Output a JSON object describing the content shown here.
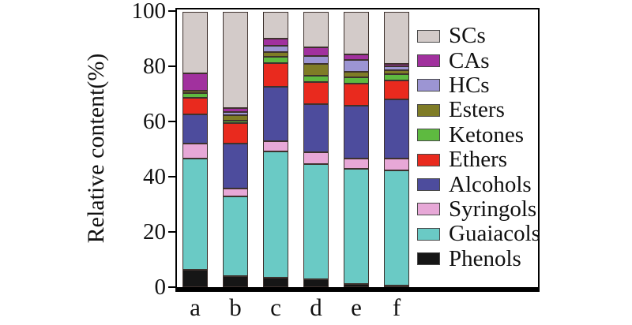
{
  "figure": {
    "ylabel": "Relative content(%)"
  },
  "chart_data": {
    "type": "bar",
    "stacked": true,
    "title": "",
    "xlabel": "",
    "ylabel": "Relative content(%)",
    "categories": [
      "a",
      "b",
      "c",
      "d",
      "e",
      "f"
    ],
    "yticks": [
      0,
      20,
      40,
      60,
      80,
      100
    ],
    "ylim": [
      0,
      102
    ],
    "grid": false,
    "legend_position": "right-inside",
    "legend_order_top_to_bottom": [
      "SCs",
      "CAs",
      "HCs",
      "Esters",
      "Ketones",
      "Ethers",
      "Alcohols",
      "Syringols",
      "Guaiacols",
      "Phenols"
    ],
    "series": [
      {
        "name": "Phenols",
        "color": "#161616",
        "values": [
          6.3,
          4.0,
          3.4,
          2.8,
          1.2,
          0.6
        ]
      },
      {
        "name": "Guaiacols",
        "color": "#6acac5",
        "values": [
          40.4,
          29.0,
          45.7,
          42.0,
          41.7,
          41.8
        ]
      },
      {
        "name": "Syringols",
        "color": "#e7a8d7",
        "values": [
          5.3,
          2.8,
          3.8,
          4.3,
          3.8,
          4.3
        ]
      },
      {
        "name": "Alcohols",
        "color": "#4d4c9d",
        "values": [
          10.8,
          16.2,
          19.9,
          17.2,
          19.1,
          21.5
        ]
      },
      {
        "name": "Ethers",
        "color": "#e92a1e",
        "values": [
          6.0,
          7.4,
          8.5,
          8.1,
          8.1,
          6.7
        ]
      },
      {
        "name": "Ketones",
        "color": "#5eba40",
        "values": [
          1.6,
          0.9,
          2.4,
          2.4,
          2.2,
          2.4
        ]
      },
      {
        "name": "Esters",
        "color": "#7f7c26",
        "values": [
          0.9,
          2.0,
          1.7,
          4.1,
          2.1,
          1.4
        ]
      },
      {
        "name": "HCs",
        "color": "#9c95d3",
        "values": [
          0.0,
          1.3,
          2.1,
          2.9,
          4.3,
          1.4
        ]
      },
      {
        "name": "CAs",
        "color": "#a1319e",
        "values": [
          6.4,
          1.5,
          2.8,
          3.2,
          1.9,
          0.8
        ]
      },
      {
        "name": "SCs",
        "color": "#d3cbc9",
        "values": [
          22.3,
          34.9,
          9.7,
          13.0,
          15.6,
          19.1
        ]
      }
    ]
  }
}
